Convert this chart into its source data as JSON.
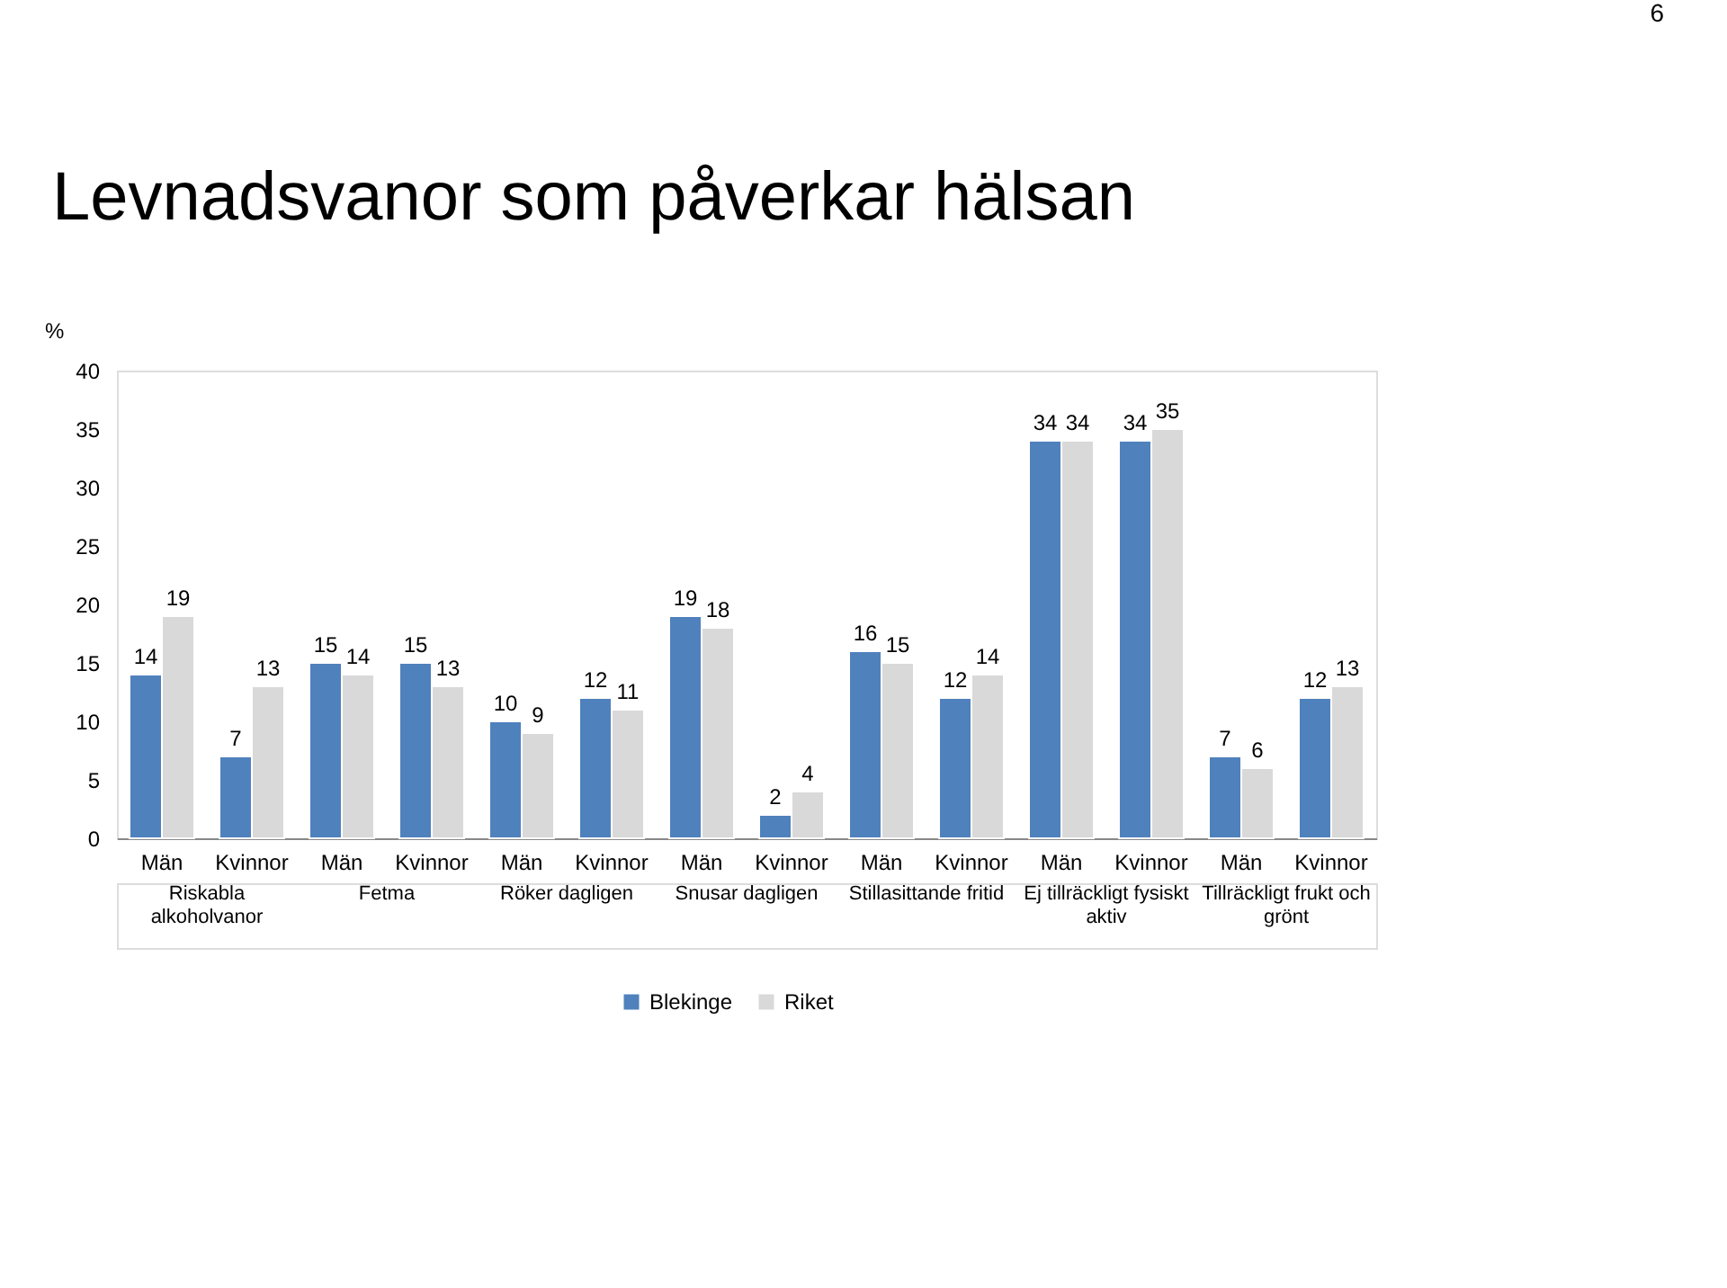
{
  "chart_data": {
    "type": "bar",
    "title": "Levnadsvanor som påverkar hälsan",
    "ylabel": "%",
    "categories": [
      "Män",
      "Kvinnor",
      "Män",
      "Kvinnor",
      "Män",
      "Kvinnor",
      "Män",
      "Kvinnor",
      "Män",
      "Kvinnor",
      "Män",
      "Kvinnor",
      "Män",
      "Kvinnor"
    ],
    "series": [
      {
        "name": "Blekinge",
        "color": "#4f81bd",
        "values": [
          14,
          7,
          15,
          15,
          10,
          12,
          19,
          2,
          16,
          12,
          34,
          34,
          7,
          12
        ]
      },
      {
        "name": "Riket",
        "color": "#d9d9d9",
        "values": [
          19,
          13,
          14,
          13,
          9,
          11,
          18,
          4,
          15,
          14,
          34,
          35,
          6,
          13
        ]
      }
    ],
    "ylim": [
      0,
      40
    ],
    "yticks": [
      0,
      5,
      10,
      15,
      20,
      25,
      30,
      35,
      40
    ],
    "grid": false,
    "data_labels": true,
    "legend": "bottom",
    "annotations": [
      "Riskabla alkoholvanor",
      "Fetma",
      "Röker dagligen",
      "Snusar dagligen",
      "Stillasittande fritid",
      "Ej tillräckligt fysiskt aktiv",
      "Tillräckligt frukt och grönt",
      "6"
    ]
  }
}
